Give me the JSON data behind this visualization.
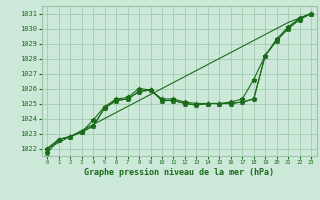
{
  "title": "Graphe pression niveau de la mer (hPa)",
  "x": [
    0,
    1,
    2,
    3,
    4,
    5,
    6,
    7,
    8,
    9,
    10,
    11,
    12,
    13,
    14,
    15,
    16,
    17,
    18,
    19,
    20,
    21,
    22,
    23
  ],
  "line_straight": [
    1022.0,
    1022.4,
    1022.8,
    1023.2,
    1023.6,
    1024.0,
    1024.4,
    1024.8,
    1025.2,
    1025.6,
    1026.0,
    1026.4,
    1026.8,
    1027.2,
    1027.6,
    1028.0,
    1028.4,
    1028.8,
    1029.2,
    1029.6,
    1030.0,
    1030.4,
    1030.7,
    1031.0
  ],
  "line1": [
    1022.0,
    1022.6,
    1022.8,
    1023.1,
    1023.5,
    1024.7,
    1025.2,
    1025.3,
    1025.8,
    1025.9,
    1025.2,
    1025.2,
    1025.0,
    1024.9,
    1025.0,
    1025.0,
    1025.0,
    1025.1,
    1025.3,
    1028.2,
    1029.2,
    1030.0,
    1030.6,
    1031.0
  ],
  "line2": [
    1022.0,
    1022.6,
    1022.8,
    1023.1,
    1023.5,
    1024.7,
    1025.2,
    1025.3,
    1025.8,
    1025.9,
    1025.2,
    1025.2,
    1025.0,
    1024.9,
    1025.0,
    1025.0,
    1025.0,
    1025.1,
    1025.3,
    1028.2,
    1029.2,
    1030.0,
    1030.6,
    1031.0
  ],
  "line3": [
    1021.7,
    1022.6,
    1022.8,
    1023.1,
    1023.9,
    1024.8,
    1025.3,
    1025.4,
    1026.0,
    1025.9,
    1025.3,
    1025.3,
    1025.1,
    1025.0,
    1025.0,
    1025.0,
    1025.1,
    1025.3,
    1026.6,
    1028.2,
    1029.3,
    1030.1,
    1030.7,
    1031.0
  ],
  "ylim_min": 1021.5,
  "ylim_max": 1031.5,
  "yticks": [
    1022,
    1023,
    1024,
    1025,
    1026,
    1027,
    1028,
    1029,
    1030,
    1031
  ],
  "line_color": "#1a6b1a",
  "bg_color": "#cce8d8",
  "grid_color": "#99c4aa",
  "text_color": "#1a6b1a",
  "marker": "*",
  "markersize": 3.5,
  "linewidth": 0.8,
  "fig_width": 3.2,
  "fig_height": 2.0,
  "dpi": 100
}
